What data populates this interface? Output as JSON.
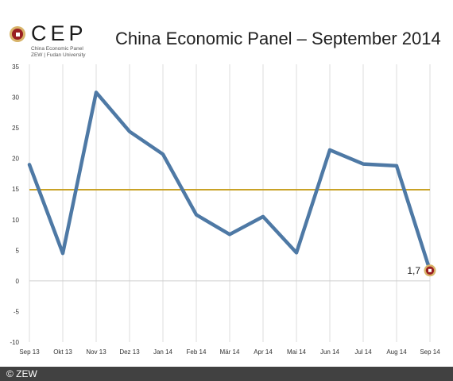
{
  "logo": {
    "name": "CEP",
    "line1": "China Economic Panel",
    "line2": "ZEW | Fudan University"
  },
  "footer": {
    "credit": "© ZEW"
  },
  "colors": {
    "series": "#4e79a5",
    "reference": "#c9a227",
    "marker_ring": "#d8b46a",
    "marker_fill": "#9a1f22"
  },
  "chart_data": {
    "type": "line",
    "title": "China Economic Panel – September 2014",
    "xlabel": "",
    "ylabel": "",
    "categories": [
      "Sep 13",
      "Okt 13",
      "Nov 13",
      "Dez 13",
      "Jan 14",
      "Feb 14",
      "Mär 14",
      "Apr 14",
      "Mai 14",
      "Jun 14",
      "Jul 14",
      "Aug 14",
      "Sep 14"
    ],
    "values": [
      19.0,
      4.5,
      30.8,
      24.4,
      20.7,
      10.8,
      7.6,
      10.5,
      4.6,
      21.4,
      19.1,
      18.8,
      1.7
    ],
    "reference_line": 14.9,
    "ylim": [
      -10,
      35
    ],
    "yticks": [
      35,
      30,
      25,
      20,
      15,
      10,
      5,
      0,
      -5,
      -10
    ],
    "grid": "vertical",
    "annotation": {
      "label": "1,7",
      "category": "Sep 14",
      "value": 1.7
    }
  }
}
